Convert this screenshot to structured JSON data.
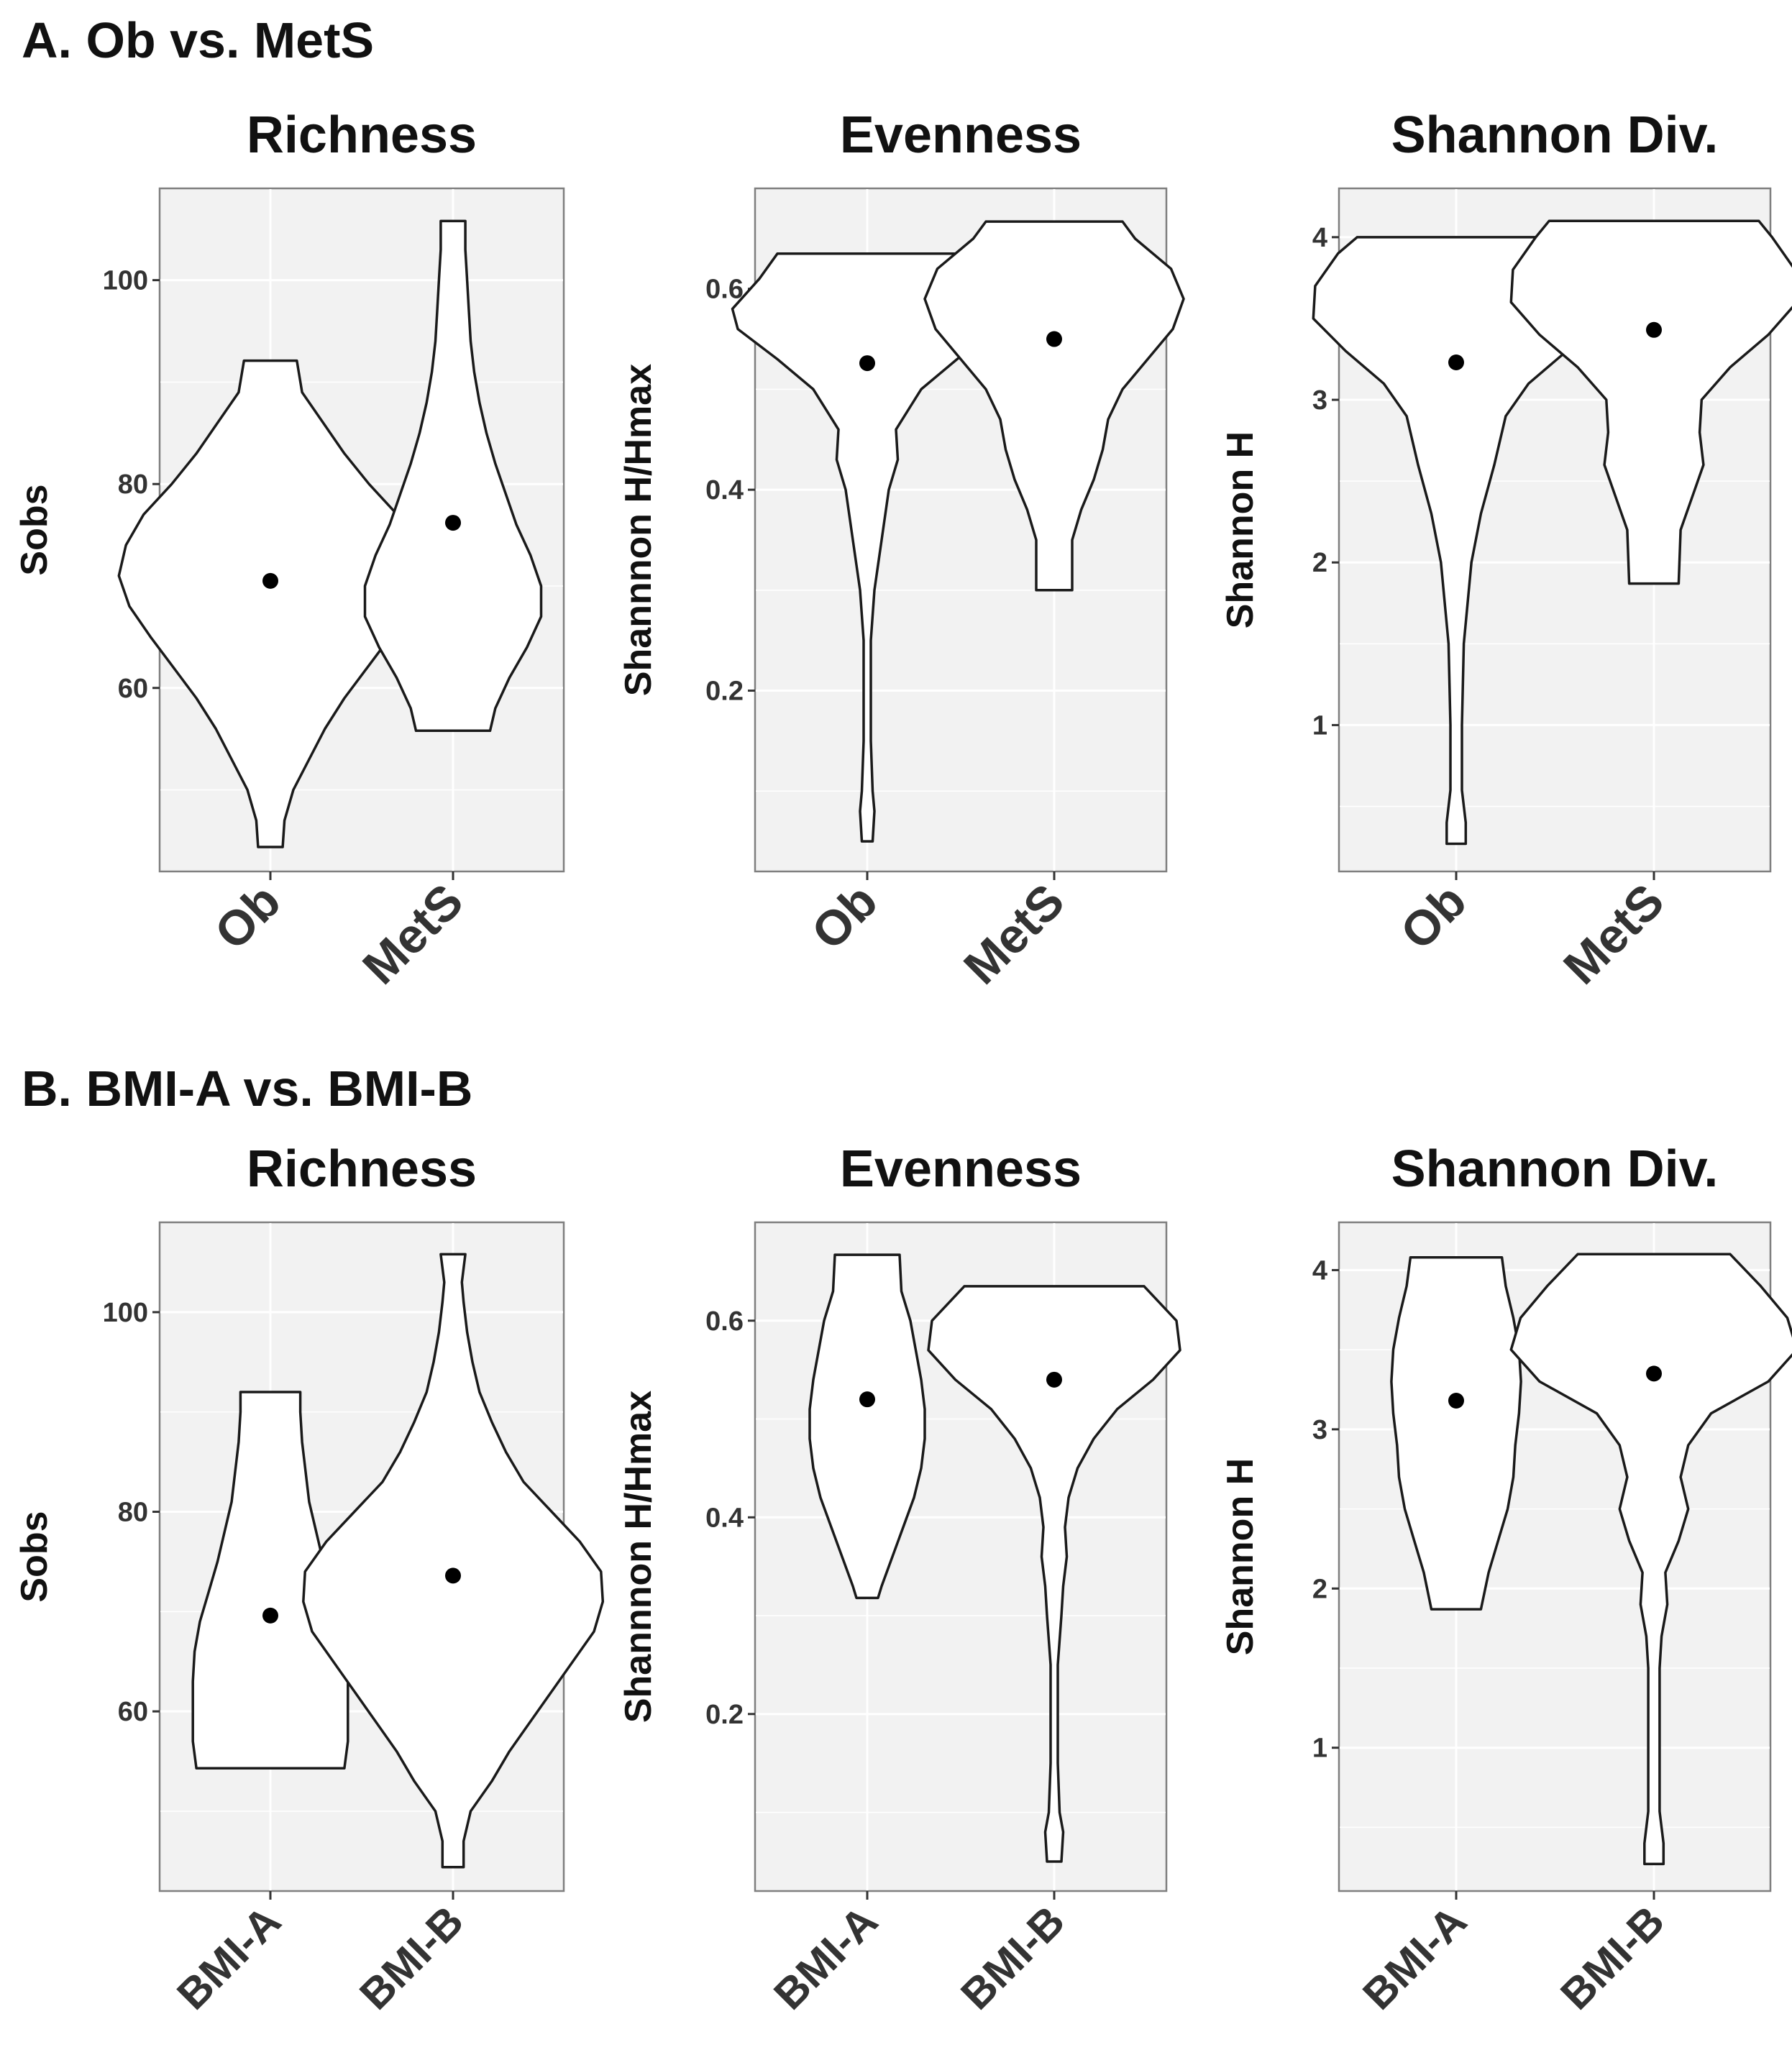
{
  "sections": [
    {
      "title": "A. Ob vs. MetS"
    },
    {
      "title": "B.  BMI-A vs. BMI-B"
    }
  ],
  "chart_data": [
    {
      "type": "violin",
      "section": "A",
      "title": "Richness",
      "xlabel": "",
      "ylabel": "Sobs",
      "categories": [
        "Ob",
        "MetS"
      ],
      "yticks": [
        60,
        80,
        100
      ],
      "ylim": [
        42,
        109
      ],
      "grid": true,
      "means": [
        70.5,
        76.2
      ],
      "violins": [
        {
          "name": "Ob",
          "profile": [
            [
              44.4,
              0.07
            ],
            [
              47,
              0.08
            ],
            [
              50,
              0.13
            ],
            [
              53,
              0.22
            ],
            [
              56,
              0.31
            ],
            [
              59,
              0.42
            ],
            [
              62,
              0.55
            ],
            [
              65,
              0.68
            ],
            [
              68,
              0.8
            ],
            [
              71,
              0.86
            ],
            [
              74,
              0.82
            ],
            [
              77,
              0.72
            ],
            [
              80,
              0.56
            ],
            [
              83,
              0.42
            ],
            [
              86,
              0.3
            ],
            [
              89,
              0.18
            ],
            [
              92.1,
              0.15
            ]
          ]
        },
        {
          "name": "MetS",
          "profile": [
            [
              55.8,
              0.21
            ],
            [
              58,
              0.24
            ],
            [
              61,
              0.32
            ],
            [
              64,
              0.42
            ],
            [
              67,
              0.5
            ],
            [
              70,
              0.5
            ],
            [
              73,
              0.44
            ],
            [
              76,
              0.36
            ],
            [
              79,
              0.3
            ],
            [
              82,
              0.24
            ],
            [
              85,
              0.19
            ],
            [
              88,
              0.15
            ],
            [
              91,
              0.12
            ],
            [
              94,
              0.1
            ],
            [
              97,
              0.09
            ],
            [
              100,
              0.08
            ],
            [
              103,
              0.07
            ],
            [
              105.8,
              0.07
            ]
          ]
        }
      ]
    },
    {
      "type": "violin",
      "section": "A",
      "title": "Evenness",
      "xlabel": "",
      "ylabel": "Shannnon H/Hmax",
      "categories": [
        "Ob",
        "MetS"
      ],
      "yticks": [
        0.2,
        0.4,
        0.6
      ],
      "ylim": [
        0.02,
        0.7
      ],
      "grid": true,
      "means": [
        0.526,
        0.55
      ],
      "violins": [
        {
          "name": "Ob",
          "profile": [
            [
              0.05,
              0.03
            ],
            [
              0.08,
              0.04
            ],
            [
              0.1,
              0.03
            ],
            [
              0.15,
              0.02
            ],
            [
              0.2,
              0.02
            ],
            [
              0.25,
              0.02
            ],
            [
              0.3,
              0.04
            ],
            [
              0.35,
              0.08
            ],
            [
              0.4,
              0.12
            ],
            [
              0.43,
              0.17
            ],
            [
              0.46,
              0.16
            ],
            [
              0.5,
              0.3
            ],
            [
              0.53,
              0.5
            ],
            [
              0.56,
              0.72
            ],
            [
              0.58,
              0.75
            ],
            [
              0.61,
              0.6
            ],
            [
              0.635,
              0.5
            ]
          ]
        },
        {
          "name": "MetS",
          "profile": [
            [
              0.3,
              0.1
            ],
            [
              0.32,
              0.1
            ],
            [
              0.35,
              0.1
            ],
            [
              0.38,
              0.15
            ],
            [
              0.41,
              0.22
            ],
            [
              0.44,
              0.27
            ],
            [
              0.47,
              0.3
            ],
            [
              0.5,
              0.38
            ],
            [
              0.53,
              0.52
            ],
            [
              0.56,
              0.66
            ],
            [
              0.59,
              0.72
            ],
            [
              0.62,
              0.65
            ],
            [
              0.65,
              0.45
            ],
            [
              0.667,
              0.38
            ]
          ]
        }
      ]
    },
    {
      "type": "violin",
      "section": "A",
      "title": "Shannon Div.",
      "xlabel": "",
      "ylabel": "Shannon H",
      "categories": [
        "Ob",
        "MetS"
      ],
      "yticks": [
        1,
        2,
        3,
        4
      ],
      "ylim": [
        0.1,
        4.3
      ],
      "grid": true,
      "means": [
        3.23,
        3.43
      ],
      "violins": [
        {
          "name": "Ob",
          "profile": [
            [
              0.27,
              0.05
            ],
            [
              0.4,
              0.05
            ],
            [
              0.6,
              0.03
            ],
            [
              1,
              0.03
            ],
            [
              1.5,
              0.04
            ],
            [
              2,
              0.08
            ],
            [
              2.3,
              0.13
            ],
            [
              2.6,
              0.2
            ],
            [
              2.9,
              0.26
            ],
            [
              3.1,
              0.38
            ],
            [
              3.3,
              0.58
            ],
            [
              3.5,
              0.75
            ],
            [
              3.7,
              0.74
            ],
            [
              3.9,
              0.62
            ],
            [
              4,
              0.52
            ]
          ]
        },
        {
          "name": "MetS",
          "profile": [
            [
              1.87,
              0.13
            ],
            [
              2.2,
              0.14
            ],
            [
              2.4,
              0.2
            ],
            [
              2.6,
              0.26
            ],
            [
              2.8,
              0.24
            ],
            [
              3,
              0.25
            ],
            [
              3.2,
              0.4
            ],
            [
              3.4,
              0.6
            ],
            [
              3.6,
              0.75
            ],
            [
              3.8,
              0.74
            ],
            [
              4,
              0.62
            ],
            [
              4.1,
              0.55
            ]
          ]
        }
      ]
    },
    {
      "type": "violin",
      "section": "B",
      "title": "Richness",
      "xlabel": "",
      "ylabel": "Sobs",
      "categories": [
        "BMI-A",
        "BMI-B"
      ],
      "yticks": [
        60,
        80,
        100
      ],
      "ylim": [
        42,
        109
      ],
      "grid": true,
      "means": [
        69.6,
        73.6
      ],
      "violins": [
        {
          "name": "BMI-A",
          "profile": [
            [
              54.3,
              0.42
            ],
            [
              57,
              0.44
            ],
            [
              60,
              0.44
            ],
            [
              63,
              0.44
            ],
            [
              66,
              0.43
            ],
            [
              69,
              0.4
            ],
            [
              72,
              0.35
            ],
            [
              75,
              0.3
            ],
            [
              78,
              0.26
            ],
            [
              81,
              0.22
            ],
            [
              84,
              0.2
            ],
            [
              87,
              0.18
            ],
            [
              90,
              0.17
            ],
            [
              92,
              0.17
            ]
          ]
        },
        {
          "name": "BMI-B",
          "profile": [
            [
              44.4,
              0.06
            ],
            [
              47,
              0.06
            ],
            [
              50,
              0.1
            ],
            [
              53,
              0.22
            ],
            [
              56,
              0.32
            ],
            [
              59,
              0.44
            ],
            [
              62,
              0.56
            ],
            [
              65,
              0.68
            ],
            [
              68,
              0.8
            ],
            [
              71,
              0.85
            ],
            [
              74,
              0.84
            ],
            [
              77,
              0.72
            ],
            [
              80,
              0.56
            ],
            [
              83,
              0.4
            ],
            [
              86,
              0.3
            ],
            [
              89,
              0.22
            ],
            [
              92,
              0.15
            ],
            [
              95,
              0.11
            ],
            [
              98,
              0.08
            ],
            [
              101,
              0.06
            ],
            [
              103,
              0.05
            ],
            [
              105.8,
              0.07
            ]
          ]
        }
      ]
    },
    {
      "type": "violin",
      "section": "B",
      "title": "Evenness",
      "xlabel": "",
      "ylabel": "Shannnon H/Hmax",
      "categories": [
        "BMI-A",
        "BMI-B"
      ],
      "yticks": [
        0.2,
        0.4,
        0.6
      ],
      "ylim": [
        0.02,
        0.7
      ],
      "grid": true,
      "means": [
        0.52,
        0.54
      ],
      "violins": [
        {
          "name": "BMI-A",
          "profile": [
            [
              0.318,
              0.06
            ],
            [
              0.33,
              0.08
            ],
            [
              0.36,
              0.14
            ],
            [
              0.39,
              0.2
            ],
            [
              0.42,
              0.26
            ],
            [
              0.45,
              0.3
            ],
            [
              0.48,
              0.32
            ],
            [
              0.51,
              0.32
            ],
            [
              0.54,
              0.3
            ],
            [
              0.57,
              0.27
            ],
            [
              0.6,
              0.24
            ],
            [
              0.63,
              0.19
            ],
            [
              0.667,
              0.18
            ]
          ]
        },
        {
          "name": "BMI-B",
          "profile": [
            [
              0.05,
              0.04
            ],
            [
              0.08,
              0.05
            ],
            [
              0.1,
              0.03
            ],
            [
              0.15,
              0.02
            ],
            [
              0.2,
              0.02
            ],
            [
              0.25,
              0.02
            ],
            [
              0.3,
              0.04
            ],
            [
              0.33,
              0.05
            ],
            [
              0.36,
              0.07
            ],
            [
              0.39,
              0.06
            ],
            [
              0.42,
              0.08
            ],
            [
              0.45,
              0.13
            ],
            [
              0.48,
              0.22
            ],
            [
              0.51,
              0.35
            ],
            [
              0.54,
              0.55
            ],
            [
              0.57,
              0.7
            ],
            [
              0.6,
              0.68
            ],
            [
              0.635,
              0.5
            ]
          ]
        }
      ]
    },
    {
      "type": "violin",
      "section": "B",
      "title": "Shannon Div.",
      "xlabel": "",
      "ylabel": "Shannon H",
      "categories": [
        "BMI-A",
        "BMI-B"
      ],
      "yticks": [
        1,
        2,
        3,
        4
      ],
      "ylim": [
        0.1,
        4.3
      ],
      "grid": true,
      "means": [
        3.18,
        3.35
      ],
      "violins": [
        {
          "name": "BMI-A",
          "profile": [
            [
              1.87,
              0.13
            ],
            [
              2.1,
              0.17
            ],
            [
              2.3,
              0.22
            ],
            [
              2.5,
              0.27
            ],
            [
              2.7,
              0.3
            ],
            [
              2.9,
              0.31
            ],
            [
              3.1,
              0.33
            ],
            [
              3.3,
              0.34
            ],
            [
              3.5,
              0.33
            ],
            [
              3.7,
              0.3
            ],
            [
              3.9,
              0.26
            ],
            [
              4.08,
              0.24
            ]
          ]
        },
        {
          "name": "BMI-B",
          "profile": [
            [
              0.27,
              0.05
            ],
            [
              0.4,
              0.05
            ],
            [
              0.6,
              0.03
            ],
            [
              1,
              0.03
            ],
            [
              1.5,
              0.03
            ],
            [
              1.7,
              0.04
            ],
            [
              1.9,
              0.07
            ],
            [
              2.1,
              0.06
            ],
            [
              2.3,
              0.13
            ],
            [
              2.5,
              0.18
            ],
            [
              2.7,
              0.14
            ],
            [
              2.9,
              0.18
            ],
            [
              3.1,
              0.3
            ],
            [
              3.3,
              0.6
            ],
            [
              3.5,
              0.75
            ],
            [
              3.7,
              0.7
            ],
            [
              3.9,
              0.56
            ],
            [
              4.1,
              0.4
            ]
          ]
        }
      ]
    }
  ]
}
